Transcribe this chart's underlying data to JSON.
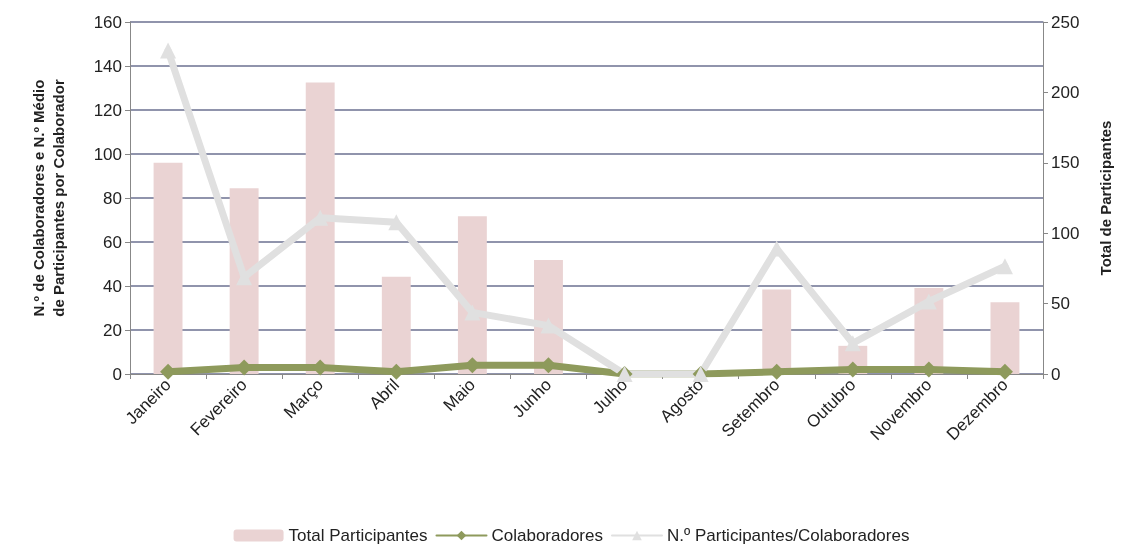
{
  "chart_data": {
    "type": "bar",
    "categories": [
      "Janeiro",
      "Fevereiro",
      "Março",
      "Abril",
      "Maio",
      "Junho",
      "Julho",
      "Agosto",
      "Setembro",
      "Outubro",
      "Novembro",
      "Dezembro"
    ],
    "ylabel": "N.º de Colaboradores e N.º Médio de Participantes por Colaborador",
    "y2label": "Total de Participantes",
    "series": [
      {
        "name": "Total Participantes",
        "axis": "y2",
        "color": "#ead3d3",
        "values": [
          150,
          132,
          207,
          69,
          112,
          81,
          0,
          0,
          60,
          20,
          61,
          51
        ]
      },
      {
        "name": "Colaboradores",
        "type": "line",
        "marker": "diamond",
        "color": "#8e9a5c",
        "values": [
          1,
          3,
          3,
          1,
          4,
          4,
          0,
          0,
          1,
          2,
          2,
          1
        ]
      },
      {
        "name": "N.º Participantes/Colaboradores",
        "type": "line",
        "marker": "triangle",
        "color": "#e0e0e0",
        "values": [
          147,
          44,
          71,
          69,
          28,
          22,
          0,
          0,
          57,
          14,
          33,
          49
        ]
      }
    ],
    "ylim": [
      0,
      160
    ],
    "yticks": [
      0,
      20,
      40,
      60,
      80,
      100,
      120,
      140,
      160
    ],
    "y2lim": [
      0,
      250
    ],
    "y2ticks": [
      0,
      50,
      100,
      150,
      200,
      250
    ],
    "grid": "y",
    "legend": "bottom"
  }
}
